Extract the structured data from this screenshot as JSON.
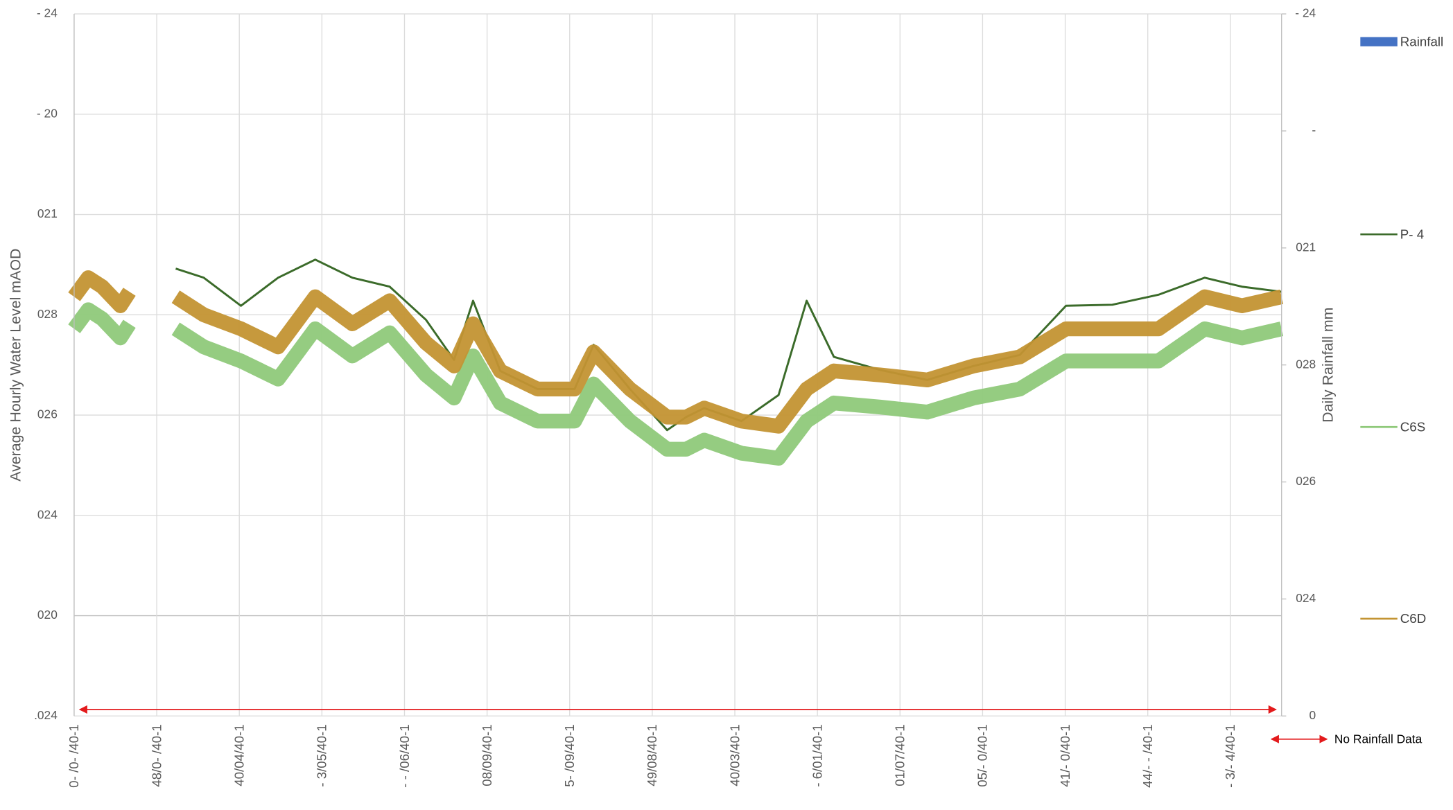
{
  "chart_data": {
    "type": "line",
    "y_label": "Average Hourly Water Level mAOD",
    "y2_label": "Daily Rainfall mm",
    "annotation": "No Rainfall Data",
    "grid": true,
    "legend": "right",
    "x": [
      0,
      0.17,
      0.34,
      0.56,
      0.67,
      0.95,
      1.23,
      1.57,
      2.02,
      2.47,
      2.92,
      3.37,
      3.82,
      4.26,
      4.6,
      4.83,
      5.16,
      5.61,
      6.06,
      6.29,
      6.73,
      7.18,
      7.41,
      7.63,
      8.08,
      8.53,
      8.87,
      9.2,
      9.76,
      10.33,
      10.89,
      11.45,
      12.01,
      12.57,
      13.13,
      13.69,
      14.14,
      14.62
    ],
    "xlim": [
      0,
      14.62
    ],
    "xticks": [
      {
        "value": 0,
        "label": "0- /0- /40-1"
      },
      {
        "value": 1,
        "label": "48/0- /40-1"
      },
      {
        "value": 2,
        "label": "40/04/40-1"
      },
      {
        "value": 3,
        "label": "- 3/05/40-1"
      },
      {
        "value": 4,
        "label": "- - /06/40-1"
      },
      {
        "value": 5,
        "label": "08/09/40-1"
      },
      {
        "value": 6,
        "label": "5- /09/40-1"
      },
      {
        "value": 7,
        "label": "49/08/40-1"
      },
      {
        "value": 8,
        "label": "40/03/40-1"
      },
      {
        "value": 9,
        "label": "- 6/01/40-1"
      },
      {
        "value": 10,
        "label": "01/07/40-1"
      },
      {
        "value": 11,
        "label": "05/- 0/40-1"
      },
      {
        "value": 12,
        "label": "41/- 0/40-1"
      },
      {
        "value": 13,
        "label": "44/- - /40-1"
      },
      {
        "value": 14,
        "label": "- 3/- 4/40-1"
      }
    ],
    "ylim": [
      0,
      7
    ],
    "yticks": [
      {
        "value": 0,
        "label": ".024"
      },
      {
        "value": 1,
        "label": "020"
      },
      {
        "value": 2,
        "label": "024"
      },
      {
        "value": 3,
        "label": "026"
      },
      {
        "value": 4,
        "label": "028"
      },
      {
        "value": 5,
        "label": "021"
      },
      {
        "value": 6,
        "label": "- 20"
      },
      {
        "value": 7,
        "label": "- 24"
      }
    ],
    "y2lim": [
      0,
      6
    ],
    "y2ticks": [
      0,
      {
        "value": 1,
        "label": "024"
      },
      {
        "value": 2,
        "label": "026"
      },
      {
        "value": 3,
        "label": "028"
      },
      {
        "value": 4,
        "label": "021"
      },
      {
        "value": 5,
        "label": "-"
      },
      {
        "value": 6,
        "label": "- 24"
      }
    ],
    "series": [
      {
        "name": "Rainfall",
        "color": "#4472c4",
        "axis": "y2",
        "values": [
          null,
          null,
          null,
          null,
          null,
          null,
          null,
          null,
          null,
          null,
          null,
          null,
          null,
          null,
          null,
          null,
          null,
          null,
          null,
          null,
          null,
          null,
          null,
          null,
          null,
          null,
          null,
          null,
          null,
          null,
          null,
          null,
          null,
          null,
          null,
          null,
          null,
          null
        ]
      },
      {
        "name": "P- 4",
        "color": "#3b6b2a",
        "values": [
          null,
          null,
          null,
          null,
          null,
          null,
          4.46,
          4.37,
          4.09,
          4.37,
          4.55,
          4.37,
          4.28,
          3.95,
          3.55,
          4.14,
          3.44,
          3.26,
          3.26,
          3.7,
          3.26,
          2.85,
          2.98,
          3.07,
          2.94,
          3.2,
          4.14,
          3.58,
          3.45,
          3.35,
          3.49,
          3.6,
          4.09,
          4.1,
          4.2,
          4.37,
          4.28,
          4.23
        ]
      },
      {
        "name": "C6S",
        "color": "#8fc97a",
        "values": [
          3.86,
          4.05,
          3.96,
          3.77,
          3.91,
          null,
          3.86,
          3.68,
          3.54,
          3.36,
          3.86,
          3.59,
          3.82,
          3.4,
          3.17,
          3.59,
          3.12,
          2.94,
          2.94,
          3.31,
          2.94,
          2.66,
          2.66,
          2.75,
          2.62,
          2.57,
          2.94,
          3.12,
          3.08,
          3.03,
          3.17,
          3.26,
          3.54,
          3.54,
          3.54,
          3.86,
          3.77,
          3.86
        ]
      },
      {
        "name": "C6D",
        "color": "#c39433",
        "values": [
          4.18,
          4.37,
          4.28,
          4.09,
          4.23,
          null,
          4.18,
          4.0,
          3.86,
          3.68,
          4.18,
          3.91,
          4.14,
          3.72,
          3.49,
          3.91,
          3.44,
          3.26,
          3.26,
          3.63,
          3.26,
          2.98,
          2.98,
          3.07,
          2.94,
          2.89,
          3.26,
          3.44,
          3.4,
          3.35,
          3.49,
          3.58,
          3.86,
          3.86,
          3.86,
          4.18,
          4.09,
          4.18
        ]
      }
    ]
  }
}
